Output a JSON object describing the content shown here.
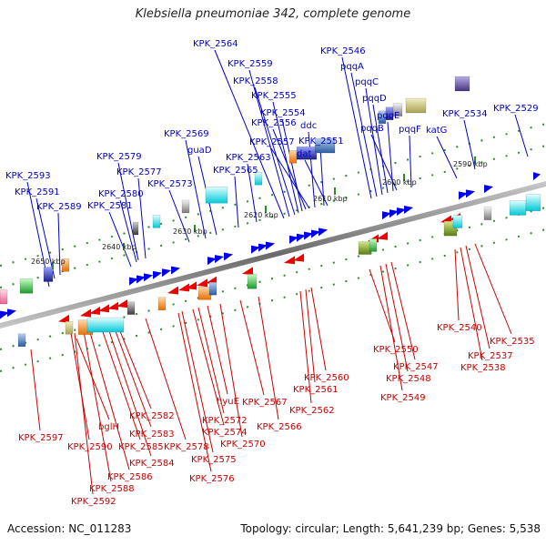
{
  "title": "Klebsiella pneumoniae 342, complete genome",
  "footer": {
    "accession": "Accession: NC_011283",
    "summary": "Topology: circular; Length: 5,641,239 bp; Genes: 5,538"
  },
  "colors": {
    "forward_label": "#0000cc",
    "reverse_label": "#cc0000",
    "forward_arrow": "#0000ee",
    "reverse_arrow": "#ee0000",
    "scale_tick": "#228b22",
    "axis": "#777777"
  },
  "scale_labels": [
    "2650 kbp",
    "2640 kbp",
    "2630 kbp",
    "2620 kbp",
    "2610 kbp",
    "2600 kbp",
    "2590 kbp"
  ],
  "forward_labels": [
    "KPK_2593",
    "KPK_2591",
    "KPK_2589",
    "KPK_2581",
    "KPK_2580",
    "KPK_2579",
    "KPK_2577",
    "KPK_2573",
    "KPK_2569",
    "guaD",
    "KPK_2565",
    "KPK_2563",
    "KPK_2564",
    "KPK_2559",
    "KPK_2558",
    "KPK_2555",
    "KPK_2554",
    "KPK_2556",
    "KPK_2557",
    "ddc",
    "KPK_2551",
    "dat",
    "KPK_2546",
    "pqqA",
    "pqqC",
    "pqqD",
    "pqqE",
    "pqqB",
    "pqqF",
    "katG",
    "KPK_2534",
    "KPK_2529"
  ],
  "reverse_labels": [
    "KPK_2597",
    "KPK_2590",
    "bglH",
    "KPK_2592",
    "KPK_2588",
    "KPK_2586",
    "KPK_2584",
    "KPK_2585",
    "KPK_2583",
    "KPK_2582",
    "KPK_2578",
    "KPK_2576",
    "KPK_2575",
    "KPK_2574",
    "KPK_2572",
    "hyuE",
    "KPK_2570",
    "KPK_2567",
    "KPK_2566",
    "KPK_2562",
    "KPK_2561",
    "KPK_2560",
    "KPK_2550",
    "KPK_2549",
    "KPK_2548",
    "KPK_2547",
    "KPK_2540",
    "KPK_2538",
    "KPK_2537",
    "KPK_2535"
  ]
}
